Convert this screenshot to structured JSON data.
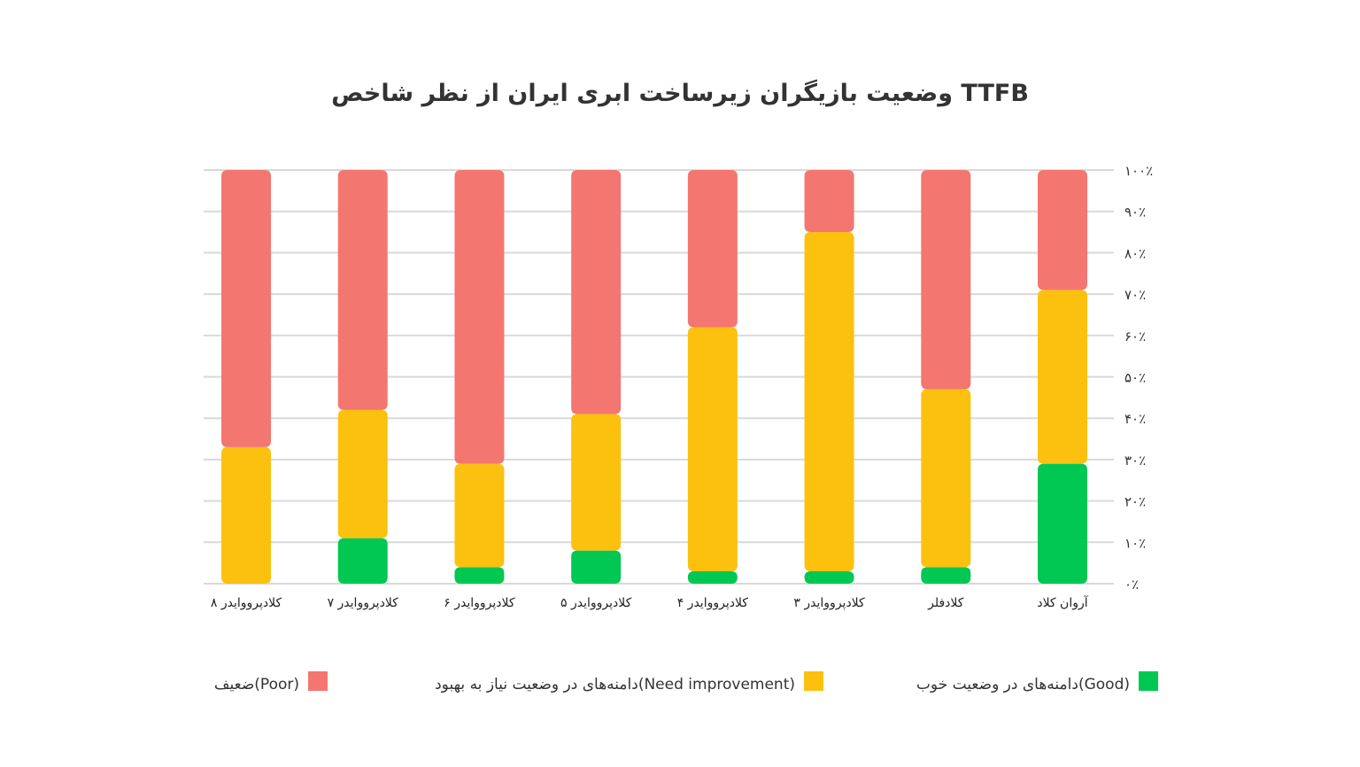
{
  "chart_data": {
    "type": "bar",
    "stacked": true,
    "title": "وضعیت بازیگران زیرساخت ابری ایران از نظر شاخص TTFB",
    "categories": [
      "کلادپرووایدر ۸",
      "کلادپرووایدر ۷",
      "کلادپرووایدر ۶",
      "کلادپرووایدر ۵",
      "کلادپرووایدر ۴",
      "کلادپرووایدر ۳",
      "کلادفلر",
      "آروان کلاد"
    ],
    "series": [
      {
        "name": "دامنه‌های در وضعیت خوب(Good)",
        "color": "#00c853",
        "values": [
          0,
          11,
          4,
          8,
          3,
          3,
          4,
          29
        ]
      },
      {
        "name": "دامنه‌های در وضعیت نیاز به بهبود(Need improvement)",
        "color": "#fcc10f",
        "values": [
          33,
          31,
          25,
          33,
          59,
          82,
          43,
          42
        ]
      },
      {
        "name": "ضعیف(Poor)",
        "color": "#f47670",
        "values": [
          67,
          58,
          71,
          59,
          38,
          15,
          53,
          29
        ]
      }
    ],
    "ylim": [
      0,
      100
    ],
    "yticks": [
      "۰٪",
      "۱۰٪",
      "۲۰٪",
      "۳۰٪",
      "۴۰٪",
      "۵۰٪",
      "۶۰٪",
      "۷۰٪",
      "۸۰٪",
      "۹۰٪",
      "۱۰۰٪"
    ],
    "yaxis_position": "right",
    "grid": true,
    "legend": "bottom"
  }
}
